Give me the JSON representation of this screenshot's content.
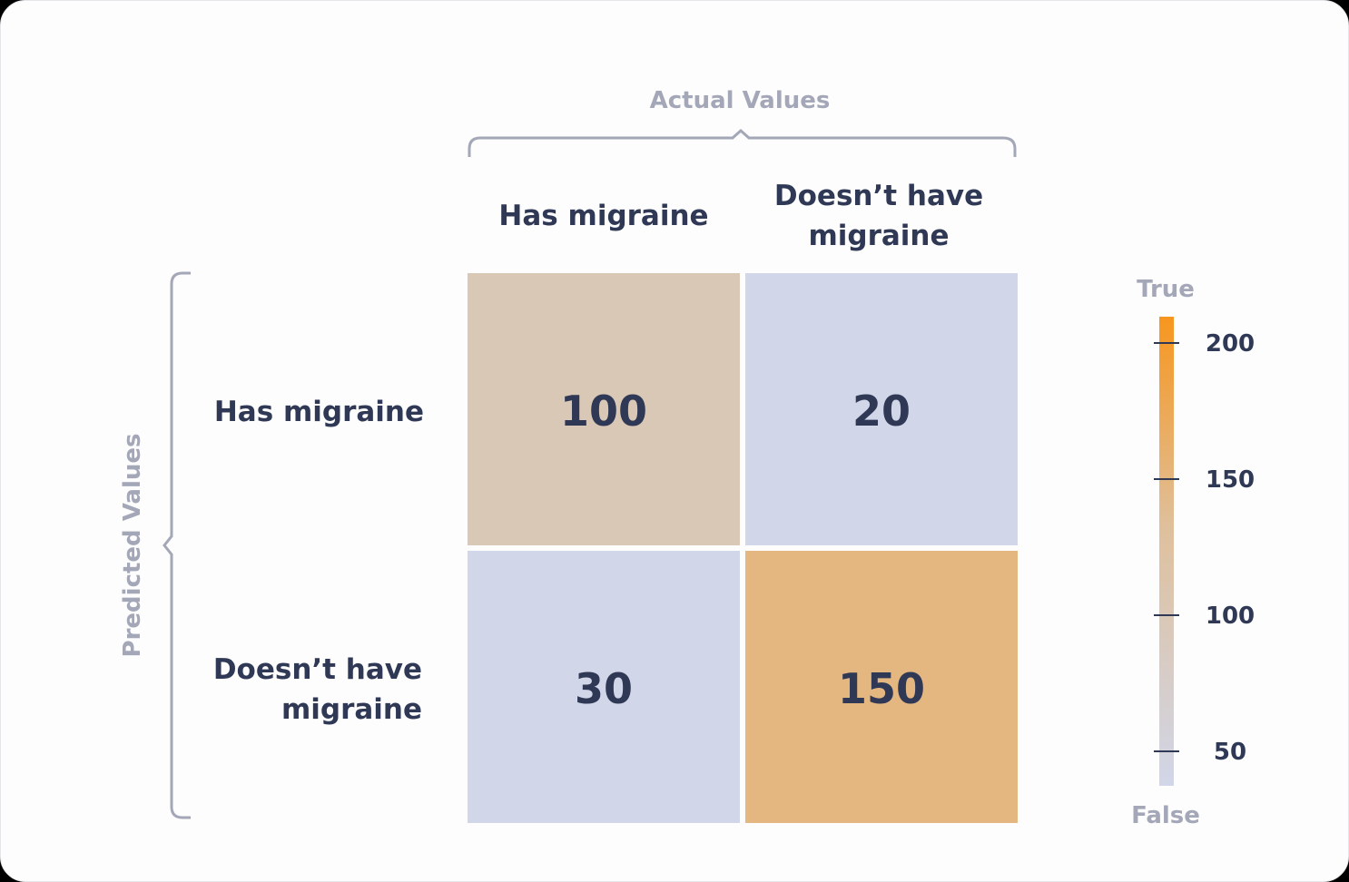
{
  "chart_data": {
    "type": "heatmap",
    "x_title": "Actual Values",
    "y_title": "Predicted Values",
    "x_categories": [
      "Has migraine",
      "Doesn’t have migraine"
    ],
    "y_categories": [
      "Has migraine",
      "Doesn’t have migraine"
    ],
    "values": [
      [
        100,
        20
      ],
      [
        30,
        150
      ]
    ],
    "colorbar": {
      "top_label": "True",
      "bottom_label": "False",
      "ticks": [
        200,
        150,
        100,
        50
      ],
      "range": [
        40,
        210
      ],
      "colors": {
        "low": "#d1d6e8",
        "mid": "#dfc09c",
        "high": "#f7961e"
      }
    }
  }
}
